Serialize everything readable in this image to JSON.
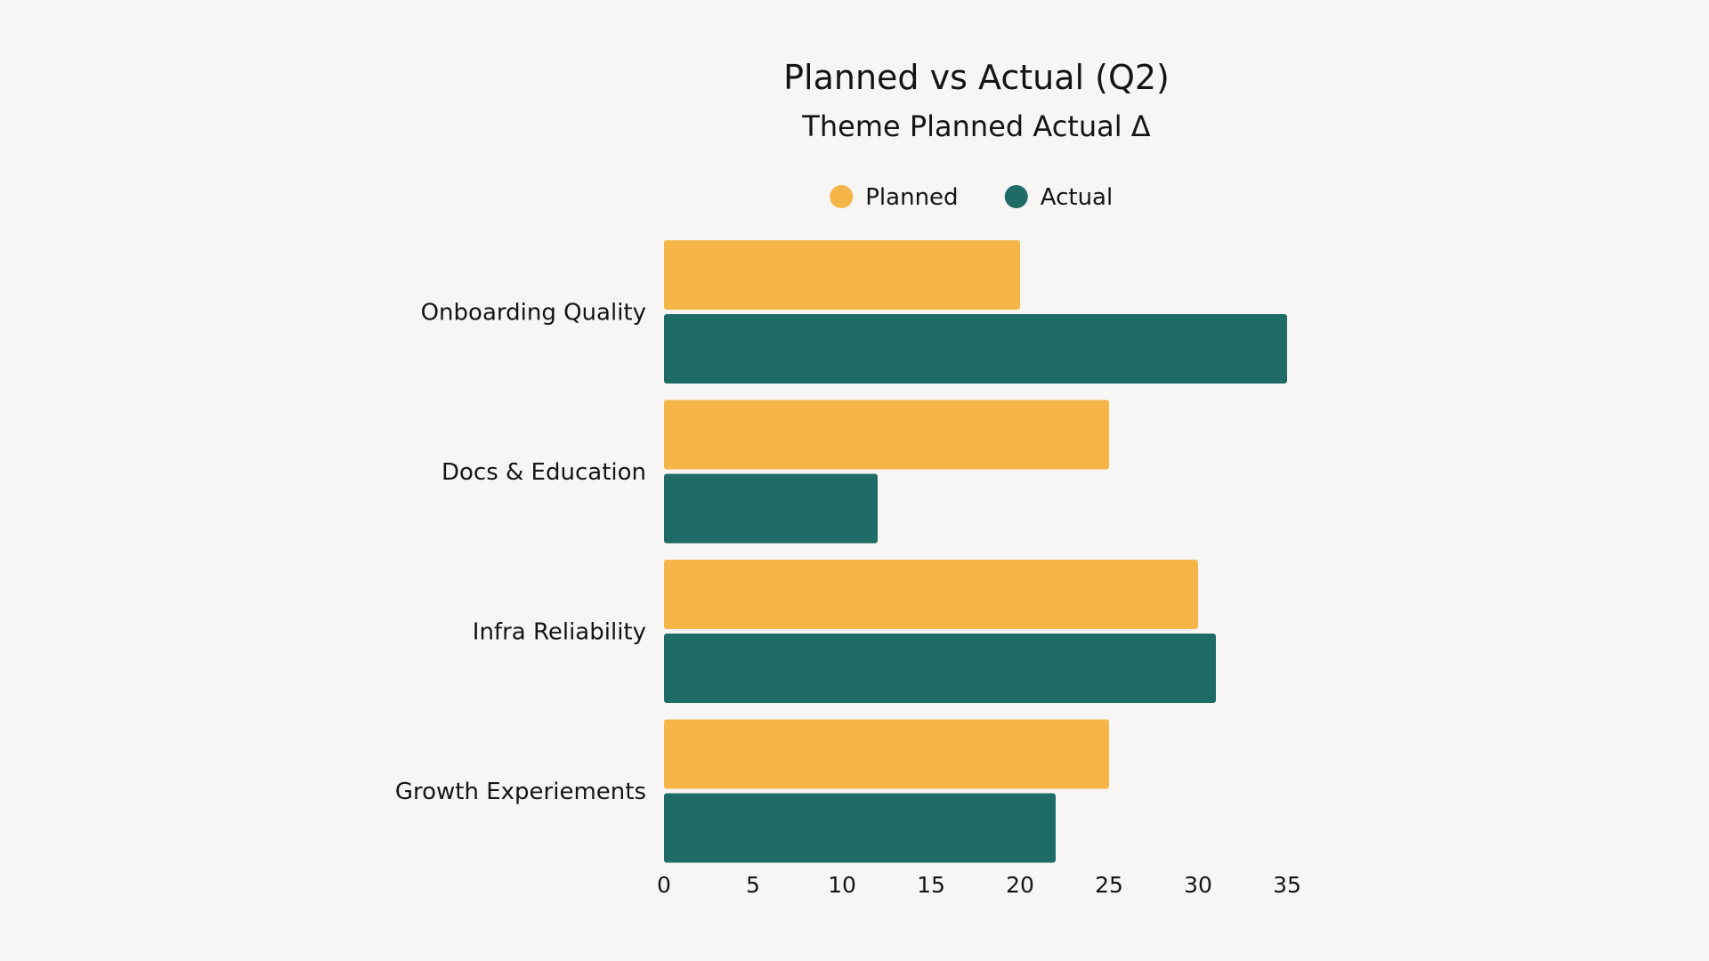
{
  "chart_data": {
    "type": "bar",
    "orientation": "horizontal",
    "title": "Planned vs Actual (Q2)",
    "subtitle": "Theme Planned Actual Δ",
    "categories": [
      "Onboarding Quality",
      "Docs & Education",
      "Infra Reliability",
      "Growth Experiements"
    ],
    "series": [
      {
        "name": "Planned",
        "color": "#f5b548",
        "values": [
          20,
          25,
          30,
          25
        ]
      },
      {
        "name": "Actual",
        "color": "#1f6b66",
        "values": [
          35,
          12,
          31,
          22
        ]
      }
    ],
    "xlim": [
      0,
      35
    ],
    "xticks": [
      0,
      5,
      10,
      15,
      20,
      25,
      30,
      35
    ],
    "xlabel": "",
    "ylabel": "",
    "grid": false,
    "legend_position": "top-center"
  }
}
